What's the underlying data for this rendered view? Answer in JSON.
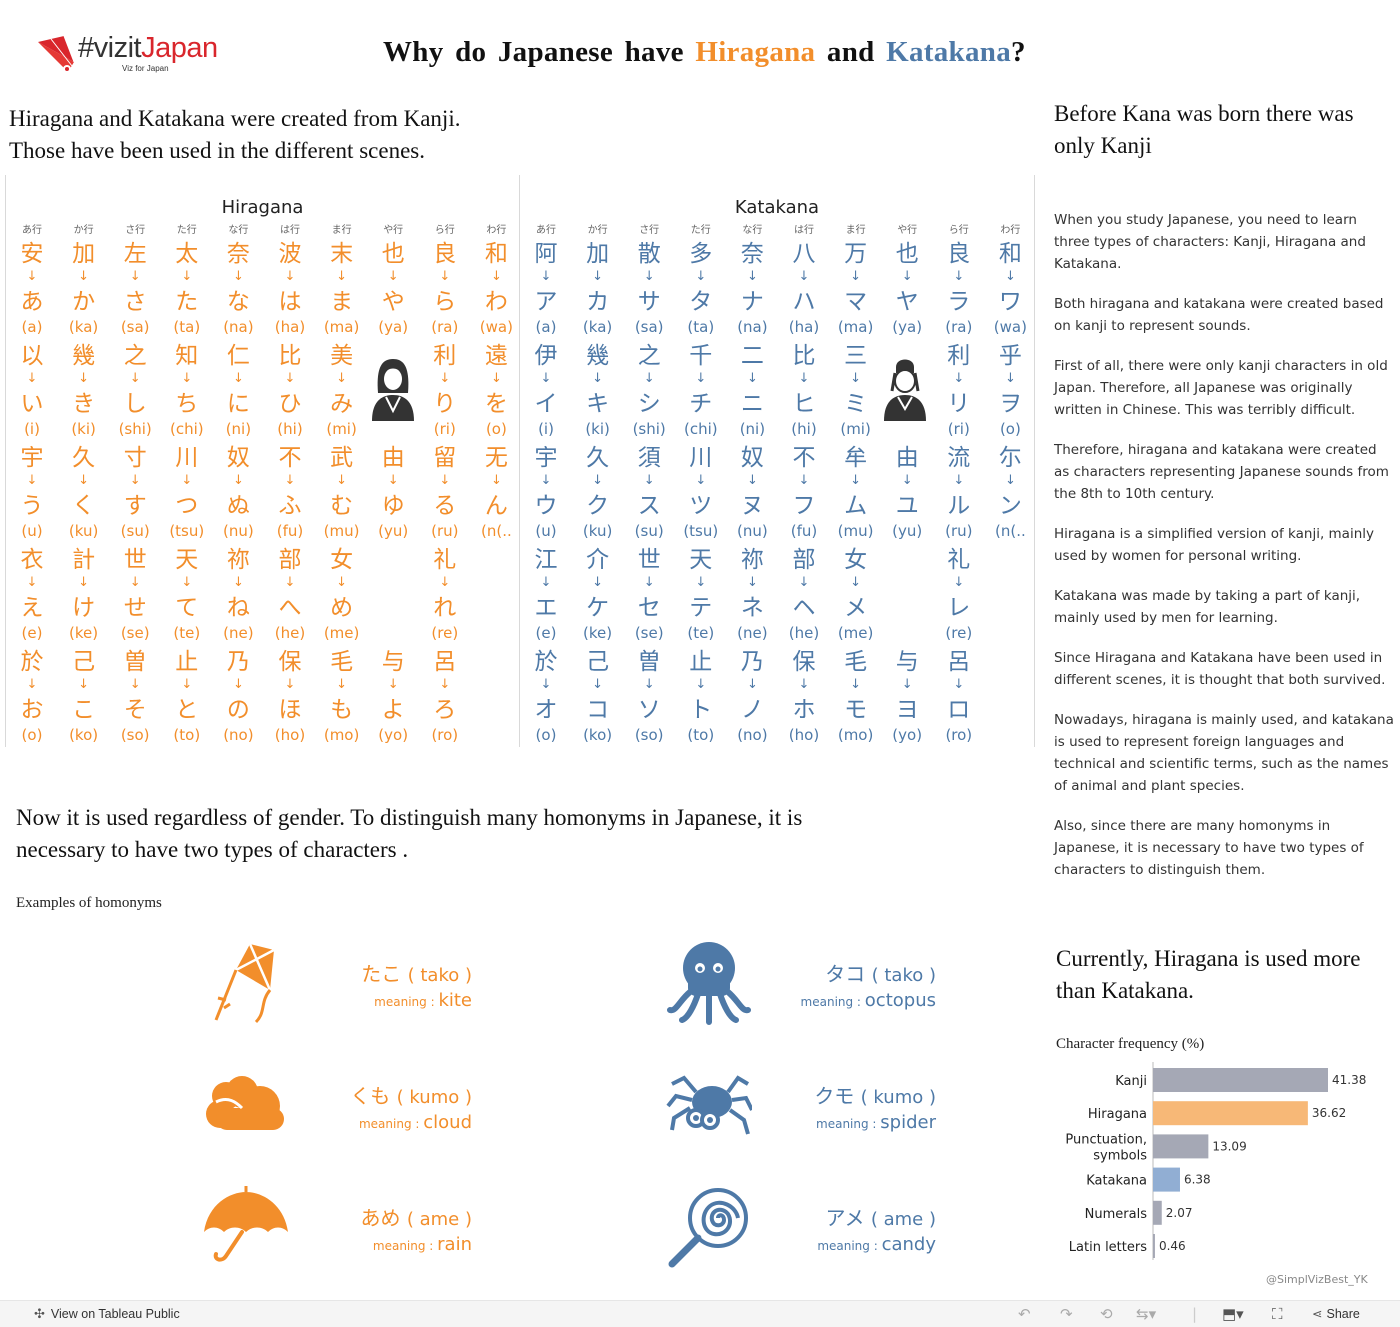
{
  "logo": {
    "name_prefix": "#vizit",
    "name_accent": "Japan",
    "subtitle": "Viz for Japan"
  },
  "title": {
    "prefix": "Why do Japanese have ",
    "hiragana": "Hiragana",
    "middle": " and ",
    "katakana": "Katakana",
    "suffix": "?"
  },
  "intro": {
    "line1": "Hiragana and Katakana were created from Kanji.",
    "line2": "Those have been used in the different scenes."
  },
  "row_headers": [
    "あ行",
    "か行",
    "さ行",
    "た行",
    "な行",
    "は行",
    "ま行",
    "や行",
    "ら行",
    "わ行"
  ],
  "arrow": "↓",
  "hiragana_table": {
    "title": "Hiragana",
    "cells": [
      [
        [
          "安",
          "あ",
          "(a)"
        ],
        [
          "以",
          "い",
          "(i)"
        ],
        [
          "宇",
          "う",
          "(u)"
        ],
        [
          "衣",
          "え",
          "(e)"
        ],
        [
          "於",
          "お",
          "(o)"
        ]
      ],
      [
        [
          "加",
          "か",
          "(ka)"
        ],
        [
          "幾",
          "き",
          "(ki)"
        ],
        [
          "久",
          "く",
          "(ku)"
        ],
        [
          "計",
          "け",
          "(ke)"
        ],
        [
          "己",
          "こ",
          "(ko)"
        ]
      ],
      [
        [
          "左",
          "さ",
          "(sa)"
        ],
        [
          "之",
          "し",
          "(shi)"
        ],
        [
          "寸",
          "す",
          "(su)"
        ],
        [
          "世",
          "せ",
          "(se)"
        ],
        [
          "曽",
          "そ",
          "(so)"
        ]
      ],
      [
        [
          "太",
          "た",
          "(ta)"
        ],
        [
          "知",
          "ち",
          "(chi)"
        ],
        [
          "川",
          "つ",
          "(tsu)"
        ],
        [
          "天",
          "て",
          "(te)"
        ],
        [
          "止",
          "と",
          "(to)"
        ]
      ],
      [
        [
          "奈",
          "な",
          "(na)"
        ],
        [
          "仁",
          "に",
          "(ni)"
        ],
        [
          "奴",
          "ぬ",
          "(nu)"
        ],
        [
          "祢",
          "ね",
          "(ne)"
        ],
        [
          "乃",
          "の",
          "(no)"
        ]
      ],
      [
        [
          "波",
          "は",
          "(ha)"
        ],
        [
          "比",
          "ひ",
          "(hi)"
        ],
        [
          "不",
          "ふ",
          "(fu)"
        ],
        [
          "部",
          "へ",
          "(he)"
        ],
        [
          "保",
          "ほ",
          "(ho)"
        ]
      ],
      [
        [
          "末",
          "ま",
          "(ma)"
        ],
        [
          "美",
          "み",
          "(mi)"
        ],
        [
          "武",
          "む",
          "(mu)"
        ],
        [
          "女",
          "め",
          "(me)"
        ],
        [
          "毛",
          "も",
          "(mo)"
        ]
      ],
      [
        [
          "也",
          "や",
          "(ya)"
        ],
        null,
        [
          "由",
          "ゆ",
          "(yu)"
        ],
        null,
        [
          "与",
          "よ",
          "(yo)"
        ]
      ],
      [
        [
          "良",
          "ら",
          "(ra)"
        ],
        [
          "利",
          "り",
          "(ri)"
        ],
        [
          "留",
          "る",
          "(ru)"
        ],
        [
          "礼",
          "れ",
          "(re)"
        ],
        [
          "呂",
          "ろ",
          "(ro)"
        ]
      ],
      [
        [
          "和",
          "わ",
          "(wa)"
        ],
        [
          "遠",
          "を",
          "(o)"
        ],
        [
          "无",
          "ん",
          "(n(.."
        ],
        null,
        null
      ]
    ]
  },
  "katakana_table": {
    "title": "Katakana",
    "cells": [
      [
        [
          "阿",
          "ア",
          "(a)"
        ],
        [
          "伊",
          "イ",
          "(i)"
        ],
        [
          "宇",
          "ウ",
          "(u)"
        ],
        [
          "江",
          "エ",
          "(e)"
        ],
        [
          "於",
          "オ",
          "(o)"
        ]
      ],
      [
        [
          "加",
          "カ",
          "(ka)"
        ],
        [
          "幾",
          "キ",
          "(ki)"
        ],
        [
          "久",
          "ク",
          "(ku)"
        ],
        [
          "介",
          "ケ",
          "(ke)"
        ],
        [
          "己",
          "コ",
          "(ko)"
        ]
      ],
      [
        [
          "散",
          "サ",
          "(sa)"
        ],
        [
          "之",
          "シ",
          "(shi)"
        ],
        [
          "須",
          "ス",
          "(su)"
        ],
        [
          "世",
          "セ",
          "(se)"
        ],
        [
          "曽",
          "ソ",
          "(so)"
        ]
      ],
      [
        [
          "多",
          "タ",
          "(ta)"
        ],
        [
          "千",
          "チ",
          "(chi)"
        ],
        [
          "川",
          "ツ",
          "(tsu)"
        ],
        [
          "天",
          "テ",
          "(te)"
        ],
        [
          "止",
          "ト",
          "(to)"
        ]
      ],
      [
        [
          "奈",
          "ナ",
          "(na)"
        ],
        [
          "二",
          "ニ",
          "(ni)"
        ],
        [
          "奴",
          "ヌ",
          "(nu)"
        ],
        [
          "祢",
          "ネ",
          "(ne)"
        ],
        [
          "乃",
          "ノ",
          "(no)"
        ]
      ],
      [
        [
          "八",
          "ハ",
          "(ha)"
        ],
        [
          "比",
          "ヒ",
          "(hi)"
        ],
        [
          "不",
          "フ",
          "(fu)"
        ],
        [
          "部",
          "ヘ",
          "(he)"
        ],
        [
          "保",
          "ホ",
          "(ho)"
        ]
      ],
      [
        [
          "万",
          "マ",
          "(ma)"
        ],
        [
          "三",
          "ミ",
          "(mi)"
        ],
        [
          "牟",
          "ム",
          "(mu)"
        ],
        [
          "女",
          "メ",
          "(me)"
        ],
        [
          "毛",
          "モ",
          "(mo)"
        ]
      ],
      [
        [
          "也",
          "ヤ",
          "(ya)"
        ],
        null,
        [
          "由",
          "ユ",
          "(yu)"
        ],
        null,
        [
          "与",
          "ヨ",
          "(yo)"
        ]
      ],
      [
        [
          "良",
          "ラ",
          "(ra)"
        ],
        [
          "利",
          "リ",
          "(ri)"
        ],
        [
          "流",
          "ル",
          "(ru)"
        ],
        [
          "礼",
          "レ",
          "(re)"
        ],
        [
          "呂",
          "ロ",
          "(ro)"
        ]
      ],
      [
        [
          "和",
          "ワ",
          "(wa)"
        ],
        [
          "乎",
          "ヲ",
          "(o)"
        ],
        [
          "尓",
          "ン",
          "(n(.."
        ],
        null,
        null
      ]
    ]
  },
  "gender_text": "Now it is used regardless of gender.  To distinguish many homonyms in Japanese, it is necessary to have two types of characters .",
  "homonyms": {
    "title": "Examples of homonyms",
    "meaning_label": "meaning : ",
    "items": [
      {
        "word": "たこ",
        "roman": "( tako )",
        "meaning": "kite",
        "icon": "kite-icon"
      },
      {
        "word": "タコ",
        "roman": "( tako )",
        "meaning": "octopus",
        "icon": "octopus-icon"
      },
      {
        "word": "くも",
        "roman": "( kumo )",
        "meaning": "cloud",
        "icon": "cloud-icon"
      },
      {
        "word": "クモ",
        "roman": "( kumo )",
        "meaning": "spider",
        "icon": "spider-icon"
      },
      {
        "word": "あめ",
        "roman": "( ame )",
        "meaning": "rain",
        "icon": "umbrella-icon"
      },
      {
        "word": "アメ",
        "roman": "( ame )",
        "meaning": "candy",
        "icon": "lollipop-icon"
      }
    ]
  },
  "right": {
    "title": "Before Kana was born there was only Kanji",
    "paragraphs": [
      "When you study Japanese, you need to learn three types of characters: Kanji, Hiragana and Katakana.",
      "Both hiragana and katakana were created based on kanji to represent sounds.",
      "First of all, there were only kanji characters in old Japan. Therefore, all Japanese was originally written in Chinese. This was terribly difficult.",
      "Therefore, hiragana and katakana were created as characters representing Japanese sounds from the 8th to 10th century.",
      "Hiragana is a simplified version of kanji, mainly used by women for personal writing.",
      "Katakana was made by taking a part of kanji, mainly used by men for learning.",
      "Since Hiragana and Katakana have been used in different scenes, it is thought that both survived.",
      "Nowadays, hiragana is mainly used, and katakana is used to represent foreign languages and technical and scientific terms, such as the names of animal and plant species.",
      "Also, since there are many homonyms in Japanese, it is necessary to have two types of characters  to distinguish them."
    ],
    "current_title": "Currently, Hiragana is used more than Katakana."
  },
  "chart_data": {
    "type": "bar",
    "orientation": "horizontal",
    "title": "Character frequency (%)",
    "categories": [
      "Kanji",
      "Hiragana",
      "Punctuation, symbols",
      "Katakana",
      "Numerals",
      "Latin letters"
    ],
    "values": [
      41.38,
      36.62,
      13.09,
      6.38,
      2.07,
      0.46
    ],
    "value_labels": [
      "41.38",
      "36.62",
      "13.09",
      "6.38",
      "2.07",
      "0.46"
    ],
    "colors": [
      "#a5a8b5",
      "#f7b877",
      "#a5a8b5",
      "#91aed3",
      "#a5a8b5",
      "#a5a8b5"
    ],
    "xlim": [
      0,
      45
    ]
  },
  "credit": "@SimplVizBest_YK",
  "footer": {
    "view_label": "View on Tableau Public",
    "share_label": "Share"
  },
  "colors": {
    "hiragana": "#f28e2b",
    "katakana": "#4e79a7",
    "logo_accent": "#d9262c"
  }
}
